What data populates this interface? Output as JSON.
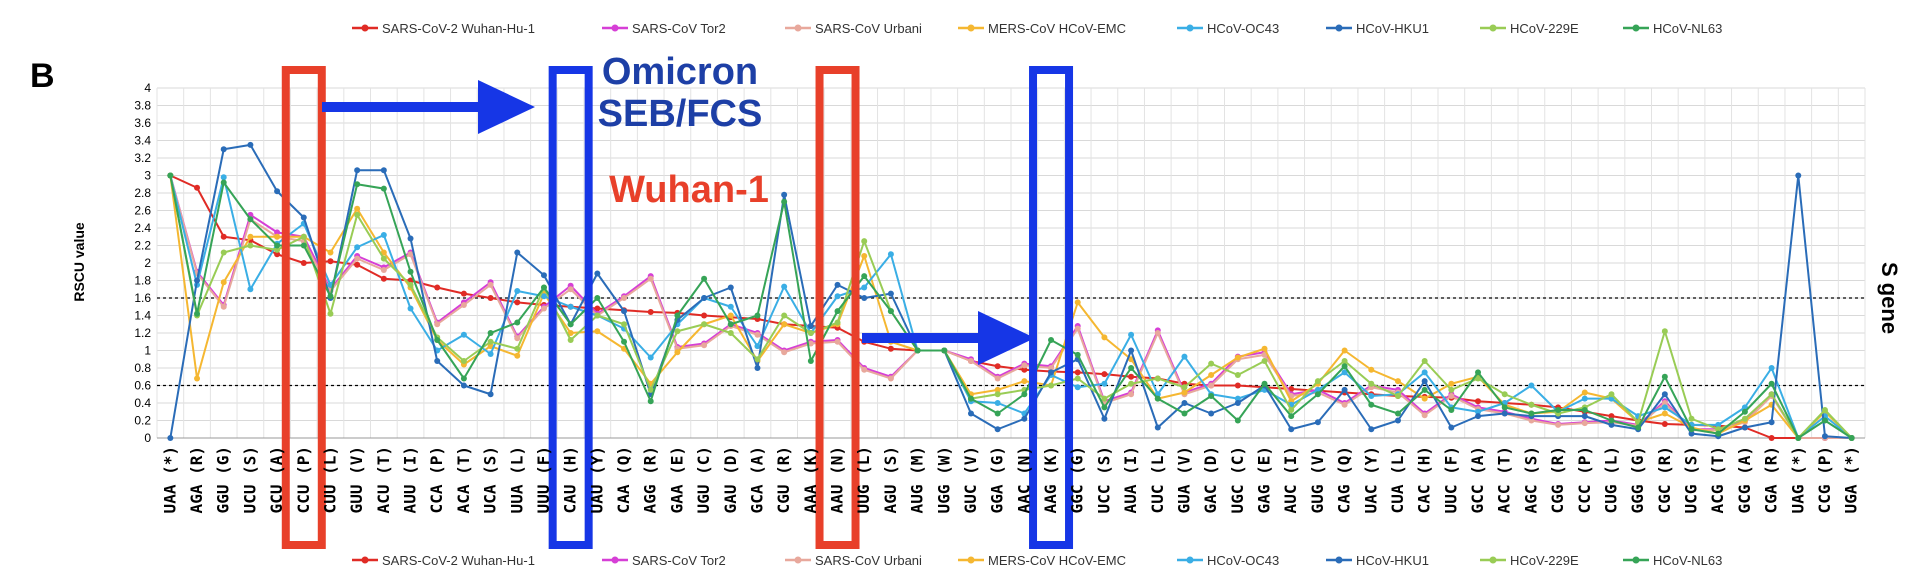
{
  "panel_label": "B",
  "side_label": "S gene",
  "annotations": {
    "omicron_line1": "Omicron",
    "omicron_line2": "SEB/FCS",
    "wuhan": "Wuhan-1"
  },
  "colors": {
    "red_box": "#e8402a",
    "blue_box": "#1636e6",
    "arrow": "#1636e6"
  },
  "chart_data": {
    "type": "line",
    "ylabel": "RSCU value",
    "ylim": [
      0,
      4
    ],
    "yticks": [
      "0",
      "0.2",
      "0.4",
      "0.6",
      "0.8",
      "1",
      "1.2",
      "1.4",
      "1.6",
      "1.8",
      "2",
      "2.2",
      "2.4",
      "2.6",
      "2.8",
      "3",
      "3.2",
      "3.4",
      "3.6",
      "3.8",
      "4"
    ],
    "grid": true,
    "legend_position": "top and bottom",
    "reference_lines": [
      1.6,
      0.6
    ],
    "highlighted_red": [
      "CCU (P)",
      "AAU (N)"
    ],
    "highlighted_blue": [
      "CAU (H)",
      "AAG (K)"
    ],
    "categories": [
      "UAA (*)",
      "AGA (R)",
      "GGU (G)",
      "UCU (S)",
      "GCU (A)",
      "CCU (P)",
      "CUU (L)",
      "GUU (V)",
      "ACU (T)",
      "AUU (I)",
      "CCA (P)",
      "ACA (T)",
      "UCA (S)",
      "UUA (L)",
      "UUU (F)",
      "CAU (H)",
      "UAU (Y)",
      "CAA (Q)",
      "AGG (R)",
      "GAA (E)",
      "UGU (C)",
      "GAU (D)",
      "GCA (A)",
      "CGU (R)",
      "AAA (K)",
      "AAU (N)",
      "UUG (L)",
      "AGU (S)",
      "AUG (M)",
      "UGG (W)",
      "GUC (V)",
      "GGA (G)",
      "AAC (N)",
      "AAG (K)",
      "GGC (G)",
      "UCC (S)",
      "AUA (I)",
      "CUC (L)",
      "GUA (V)",
      "GAC (D)",
      "UGC (C)",
      "GAG (E)",
      "AUC (I)",
      "GUG (V)",
      "CAG (Q)",
      "UAC (Y)",
      "CUA (L)",
      "CAC (H)",
      "UUC (F)",
      "GCC (A)",
      "ACC (T)",
      "AGC (S)",
      "CGG (R)",
      "CCC (P)",
      "CUG (L)",
      "GGG (G)",
      "CGC (R)",
      "UCG (S)",
      "ACG (T)",
      "GCG (A)",
      "CGA (R)",
      "UAG (*)",
      "CCG (P)",
      "UGA (*)"
    ],
    "series": [
      {
        "name": "SARS-CoV-2 Wuhan-Hu-1",
        "color": "#e02b25",
        "values": [
          3.0,
          2.86,
          2.3,
          2.26,
          2.1,
          2.0,
          2.02,
          1.98,
          1.82,
          1.8,
          1.72,
          1.65,
          1.6,
          1.55,
          1.52,
          1.5,
          1.48,
          1.46,
          1.44,
          1.43,
          1.4,
          1.38,
          1.36,
          1.3,
          1.28,
          1.26,
          1.1,
          1.02,
          1.0,
          1.0,
          0.88,
          0.82,
          0.78,
          0.76,
          0.75,
          0.73,
          0.7,
          0.68,
          0.62,
          0.6,
          0.6,
          0.58,
          0.56,
          0.54,
          0.52,
          0.5,
          0.48,
          0.47,
          0.46,
          0.42,
          0.4,
          0.38,
          0.35,
          0.3,
          0.25,
          0.2,
          0.16,
          0.15,
          0.14,
          0.12,
          0.0,
          0.0,
          0.0,
          0.0
        ]
      },
      {
        "name": "SARS-CoV Tor2",
        "color": "#d63fd6",
        "values": [
          3.0,
          1.9,
          1.52,
          2.55,
          2.35,
          2.3,
          1.7,
          2.08,
          1.95,
          2.12,
          1.32,
          1.55,
          1.78,
          1.16,
          1.5,
          1.74,
          1.42,
          1.62,
          1.85,
          1.04,
          1.08,
          1.3,
          1.2,
          1.0,
          1.1,
          1.12,
          0.8,
          0.7,
          1.0,
          1.0,
          0.9,
          0.7,
          0.85,
          0.82,
          1.28,
          0.42,
          0.52,
          1.23,
          0.52,
          0.62,
          0.93,
          0.98,
          0.5,
          0.55,
          0.4,
          0.6,
          0.55,
          0.28,
          0.5,
          0.35,
          0.3,
          0.22,
          0.16,
          0.18,
          0.2,
          0.15,
          0.42,
          0.1,
          0.1,
          0.2,
          0.5,
          0.0,
          0.0,
          0.0
        ]
      },
      {
        "name": "SARS-CoV Urbani",
        "color": "#e8a89c",
        "values": [
          3.0,
          1.88,
          1.5,
          2.5,
          2.3,
          2.25,
          1.68,
          2.05,
          1.92,
          2.1,
          1.3,
          1.52,
          1.75,
          1.14,
          1.48,
          1.7,
          1.4,
          1.6,
          1.82,
          1.02,
          1.06,
          1.28,
          1.18,
          0.98,
          1.08,
          1.1,
          0.78,
          0.68,
          1.0,
          1.0,
          0.88,
          0.68,
          0.83,
          0.8,
          1.25,
          0.4,
          0.5,
          1.2,
          0.5,
          0.6,
          0.9,
          0.95,
          0.48,
          0.52,
          0.38,
          0.58,
          0.52,
          0.26,
          0.48,
          0.33,
          0.28,
          0.2,
          0.15,
          0.17,
          0.18,
          0.14,
          0.4,
          0.09,
          0.09,
          0.18,
          0.48,
          0.0,
          0.0,
          0.0
        ]
      },
      {
        "name": "MERS-CoV HCoV-EMC",
        "color": "#f5b731",
        "values": [
          3.0,
          0.68,
          1.78,
          2.3,
          2.3,
          2.3,
          2.12,
          2.62,
          2.12,
          1.72,
          1.12,
          0.84,
          1.05,
          0.94,
          1.65,
          1.2,
          1.22,
          1.02,
          0.62,
          0.98,
          1.3,
          1.4,
          0.88,
          1.3,
          1.2,
          1.3,
          2.08,
          1.1,
          1.0,
          1.0,
          0.5,
          0.55,
          0.65,
          0.6,
          1.55,
          1.15,
          0.9,
          0.45,
          0.52,
          0.72,
          0.92,
          1.02,
          0.42,
          0.62,
          1.0,
          0.78,
          0.65,
          0.45,
          0.62,
          0.7,
          0.38,
          0.28,
          0.3,
          0.52,
          0.45,
          0.18,
          0.28,
          0.12,
          0.05,
          0.2,
          0.38,
          0.0,
          0.3,
          0.0
        ]
      },
      {
        "name": "HCoV-OC43",
        "color": "#3aaee5",
        "values": [
          3.0,
          1.75,
          2.98,
          1.7,
          2.22,
          2.45,
          1.75,
          2.18,
          2.32,
          1.48,
          1.0,
          1.18,
          0.96,
          1.68,
          1.62,
          1.5,
          1.4,
          1.25,
          0.92,
          1.3,
          1.6,
          1.5,
          1.05,
          1.73,
          1.2,
          1.62,
          1.72,
          2.1,
          1.0,
          1.0,
          0.42,
          0.4,
          0.28,
          0.72,
          0.58,
          0.62,
          1.18,
          0.5,
          0.93,
          0.5,
          0.45,
          0.55,
          0.38,
          0.55,
          0.75,
          0.48,
          0.5,
          0.75,
          0.35,
          0.3,
          0.4,
          0.6,
          0.3,
          0.45,
          0.45,
          0.25,
          0.35,
          0.15,
          0.15,
          0.35,
          0.8,
          0.0,
          0.25,
          0.0
        ]
      },
      {
        "name": "HCoV-HKU1",
        "color": "#2a6cb8",
        "values": [
          0.0,
          1.8,
          3.3,
          3.35,
          2.82,
          2.52,
          1.6,
          3.06,
          3.06,
          2.28,
          0.88,
          0.6,
          0.5,
          2.12,
          1.86,
          1.3,
          1.88,
          1.45,
          0.5,
          1.35,
          1.6,
          1.72,
          0.8,
          2.78,
          1.28,
          1.75,
          1.6,
          1.65,
          1.0,
          1.0,
          0.28,
          0.1,
          0.22,
          0.75,
          0.9,
          0.22,
          1.0,
          0.12,
          0.4,
          0.28,
          0.4,
          0.6,
          0.1,
          0.18,
          0.55,
          0.1,
          0.2,
          0.65,
          0.12,
          0.25,
          0.28,
          0.25,
          0.25,
          0.25,
          0.15,
          0.1,
          0.5,
          0.05,
          0.02,
          0.12,
          0.18,
          3.0,
          0.02,
          0.0
        ]
      },
      {
        "name": "HCoV-229E",
        "color": "#99cc55",
        "values": [
          3.0,
          1.4,
          2.12,
          2.2,
          2.15,
          2.3,
          1.42,
          2.55,
          2.05,
          1.75,
          1.15,
          0.88,
          1.1,
          1.02,
          1.72,
          1.12,
          1.4,
          1.3,
          0.55,
          1.22,
          1.3,
          1.2,
          0.9,
          1.4,
          1.2,
          1.32,
          2.25,
          1.45,
          1.0,
          1.0,
          0.45,
          0.5,
          0.55,
          0.6,
          0.68,
          0.45,
          0.62,
          0.68,
          0.58,
          0.85,
          0.72,
          0.88,
          0.32,
          0.65,
          0.88,
          0.62,
          0.48,
          0.88,
          0.55,
          0.68,
          0.5,
          0.38,
          0.28,
          0.35,
          0.5,
          0.18,
          1.22,
          0.22,
          0.1,
          0.22,
          0.5,
          0.0,
          0.32,
          0.0
        ]
      },
      {
        "name": "HCoV-NL63",
        "color": "#36a457",
        "values": [
          3.0,
          1.42,
          2.92,
          2.5,
          2.2,
          2.2,
          1.62,
          2.9,
          2.85,
          1.9,
          1.12,
          0.68,
          1.2,
          1.32,
          1.72,
          1.3,
          1.6,
          1.1,
          0.42,
          1.4,
          1.82,
          1.3,
          1.4,
          2.7,
          0.88,
          1.45,
          1.85,
          1.45,
          1.0,
          1.0,
          0.45,
          0.28,
          0.5,
          1.12,
          0.95,
          0.35,
          0.8,
          0.45,
          0.28,
          0.48,
          0.2,
          0.62,
          0.25,
          0.5,
          0.82,
          0.38,
          0.28,
          0.55,
          0.32,
          0.75,
          0.35,
          0.28,
          0.32,
          0.32,
          0.2,
          0.12,
          0.7,
          0.1,
          0.05,
          0.3,
          0.62,
          0.0,
          0.2,
          0.0
        ]
      }
    ]
  }
}
